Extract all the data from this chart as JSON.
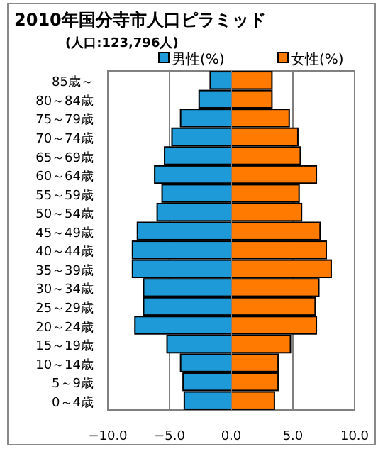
{
  "chart_data": {
    "type": "bar",
    "orientation": "horizontal",
    "title": "2010年国分寺市人口ピラミッド",
    "subtitle": "(人口:123,796人)",
    "categories": [
      "85歳～",
      "80～84歳",
      "75～79歳",
      "70～74歳",
      "65～69歳",
      "60～64歳",
      "55～59歳",
      "50～54歳",
      "45～49歳",
      "40～44歳",
      "35～39歳",
      "30～34歳",
      "25～29歳",
      "20～24歳",
      "15～19歳",
      "10～14歳",
      "5～9歳",
      "0～4歳"
    ],
    "series": [
      {
        "name": "男性(%)",
        "color": "#1e9ad8",
        "values": [
          -1.7,
          -2.6,
          -4.1,
          -4.8,
          -5.4,
          -6.2,
          -5.6,
          -6.0,
          -7.6,
          -8.0,
          -8.0,
          -7.1,
          -7.1,
          -7.8,
          -5.2,
          -4.1,
          -3.9,
          -3.8
        ]
      },
      {
        "name": "女性(%)",
        "color": "#ff7a00",
        "values": [
          3.3,
          3.3,
          4.7,
          5.4,
          5.6,
          6.9,
          5.5,
          5.7,
          7.2,
          7.7,
          8.1,
          7.1,
          6.8,
          6.9,
          4.8,
          3.8,
          3.8,
          3.5
        ]
      }
    ],
    "xlim": [
      -10,
      10
    ],
    "xticks": [
      {
        "value": -10,
        "label": "−10.0"
      },
      {
        "value": -5,
        "label": "−5.0"
      },
      {
        "value": 0,
        "label": "0.0"
      },
      {
        "value": 5,
        "label": "5.0"
      },
      {
        "value": 10,
        "label": "10.0"
      }
    ],
    "stacked": true,
    "grid": "x",
    "legend": "top right"
  }
}
